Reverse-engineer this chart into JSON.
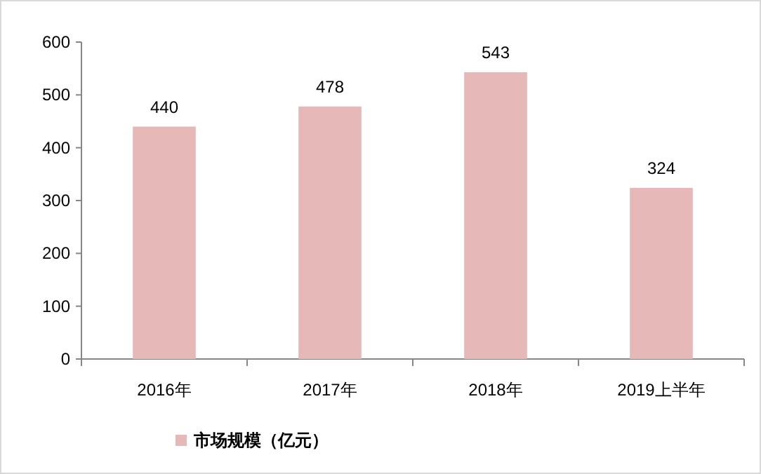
{
  "chart_data": {
    "type": "bar",
    "categories": [
      "2016年",
      "2017年",
      "2018年",
      "2019上半年"
    ],
    "series": [
      {
        "name": "市场规模（亿元）",
        "color": "#e6b9b8",
        "values": [
          440,
          478,
          543,
          324
        ]
      }
    ],
    "ylim": [
      0,
      600
    ],
    "yticks": [
      0,
      100,
      200,
      300,
      400,
      500,
      600
    ],
    "data_labels": true,
    "legend": "bottom",
    "grid": false
  }
}
